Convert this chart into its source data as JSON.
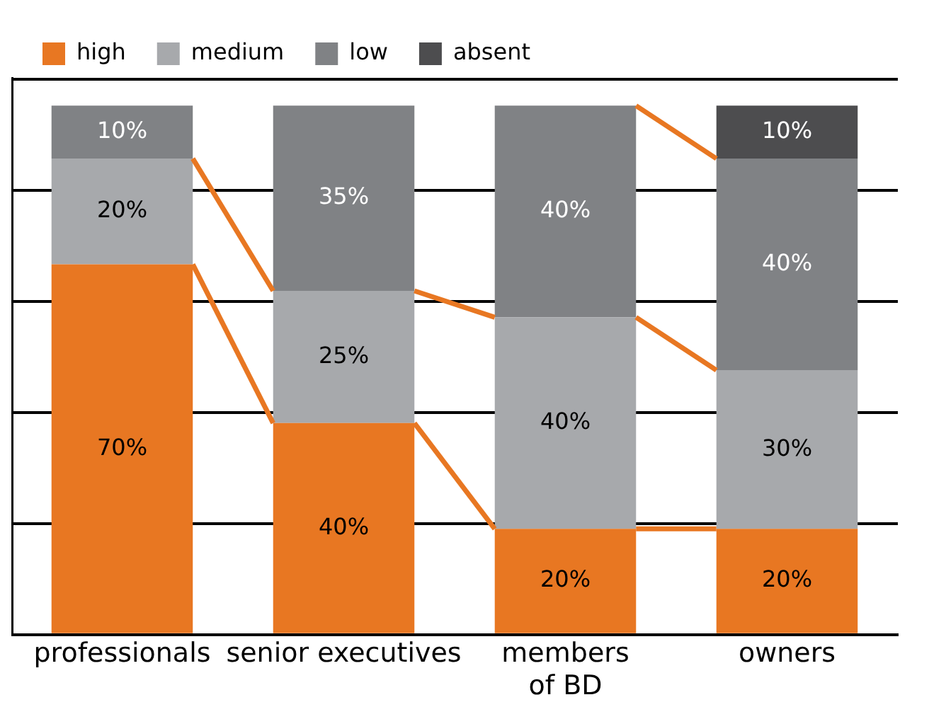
{
  "chart_data": {
    "type": "bar",
    "stacked": true,
    "categories": [
      "professionals",
      "senior executives",
      "members of BD",
      "owners"
    ],
    "series": [
      {
        "name": "high",
        "color": "#e87722",
        "values": [
          70,
          40,
          20,
          20
        ],
        "value_labels": [
          "70%",
          "40%",
          "20%",
          "20%"
        ]
      },
      {
        "name": "medium",
        "color": "#a7a9ac",
        "values": [
          20,
          25,
          40,
          30
        ],
        "value_labels": [
          "20%",
          "25%",
          "40%",
          "30%"
        ]
      },
      {
        "name": "low",
        "color": "#808285",
        "values": [
          10,
          35,
          40,
          40
        ],
        "value_labels": [
          "10%",
          "35%",
          "40%",
          "40%"
        ]
      },
      {
        "name": "absent",
        "color": "#4d4d4f",
        "values": [
          null,
          null,
          null,
          10
        ],
        "value_labels": [
          null,
          null,
          null,
          "10%"
        ]
      }
    ],
    "ylim": [
      0,
      105
    ],
    "yticks": [
      {
        "value": 0,
        "label": null
      },
      {
        "value": 21,
        "label": null
      },
      {
        "value": 42,
        "label": null
      },
      {
        "value": 63,
        "label": null
      },
      {
        "value": 84,
        "label": null
      },
      {
        "value": 105,
        "label": null
      }
    ],
    "grid": "y",
    "legend": "top",
    "tick_labels": "x"
  }
}
